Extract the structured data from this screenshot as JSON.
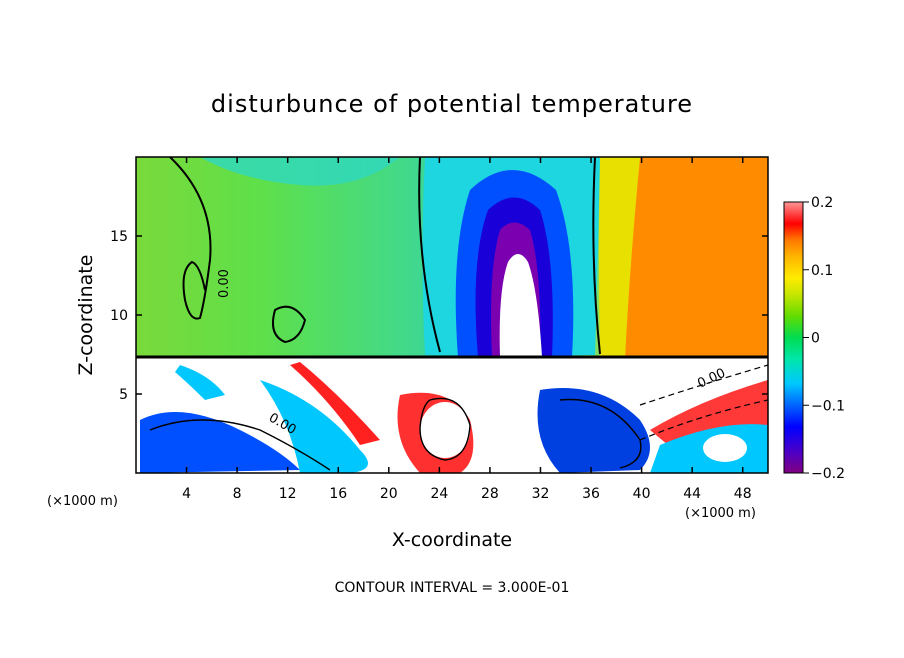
{
  "chart_data": {
    "type": "heatmap",
    "title": "disturbunce of potential temperature",
    "xlabel": "X-coordinate",
    "ylabel": "Z-coordinate",
    "x_unit": "(×1000 m)",
    "z_unit": "(×1000 m)",
    "xlim": [
      0,
      50
    ],
    "ylim": [
      0,
      20
    ],
    "x_ticks": [
      4,
      8,
      12,
      16,
      20,
      24,
      28,
      32,
      36,
      40,
      44,
      48
    ],
    "y_ticks": [
      5,
      10,
      15
    ],
    "colorbar": {
      "range": [
        -0.2,
        0.2
      ],
      "tick_values": [
        0.2,
        0.1,
        0,
        -0.1,
        -0.2
      ],
      "tick_labels": [
        "0.2",
        "0.1",
        "0",
        "−0.1",
        "−0.2"
      ]
    },
    "contour_labels": [
      "0.00",
      "0.00",
      "0.00"
    ],
    "footer": "CONTOUR INTERVAL = 3.000E-01",
    "grid": false
  },
  "colors": {
    "scale": [
      "#800080",
      "#4b00c8",
      "#0000ff",
      "#0064ff",
      "#00c8ff",
      "#00e6aa",
      "#00dc50",
      "#64dc00",
      "#c8e600",
      "#ffeb00",
      "#ffb400",
      "#ff7800",
      "#ff3200",
      "#ff0000",
      "#ff9696"
    ]
  }
}
